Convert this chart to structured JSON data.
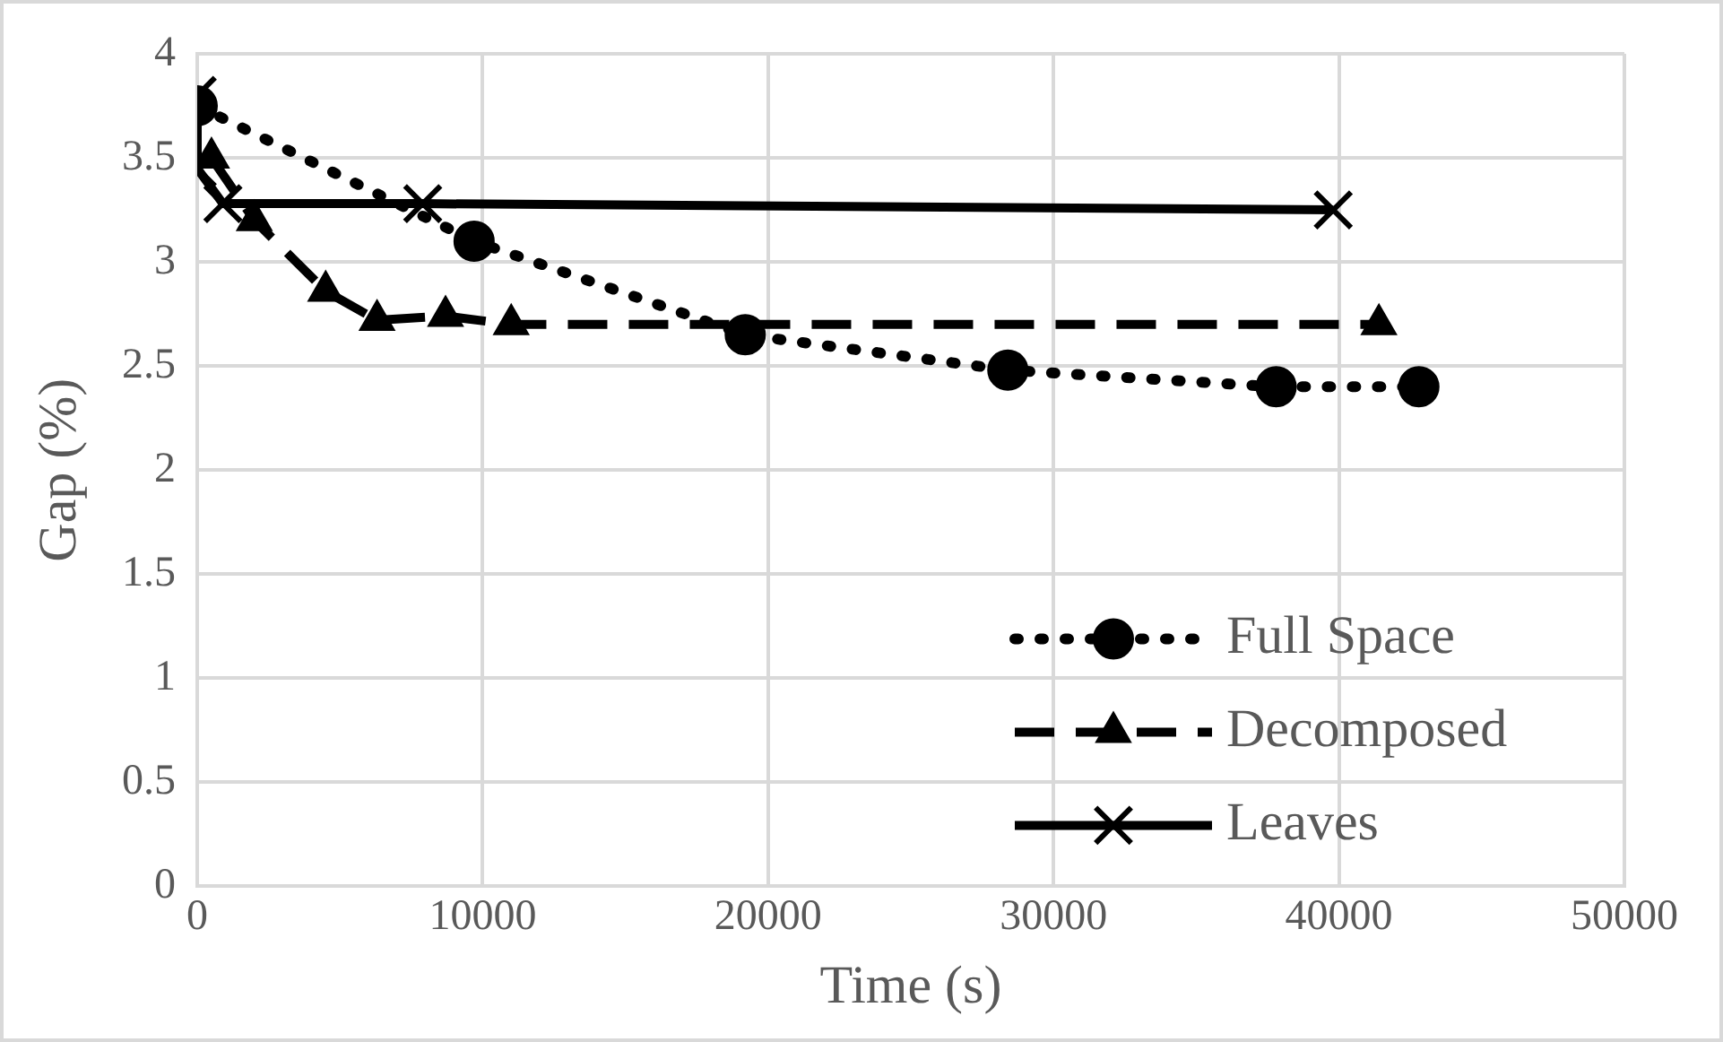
{
  "chart_data": {
    "type": "line",
    "xlabel": "Time (s)",
    "ylabel": "Gap (%)",
    "xlim": [
      0,
      50000
    ],
    "xticks": [
      0,
      10000,
      20000,
      30000,
      40000,
      50000
    ],
    "ylim": [
      0,
      4
    ],
    "yticks": [
      0,
      0.5,
      1,
      1.5,
      2,
      2.5,
      3,
      3.5,
      4
    ],
    "grid": true,
    "legend": "bottom right",
    "series": [
      {
        "name": "Full Space",
        "color": "#000000",
        "marker": "circle",
        "line_style": "dotted",
        "x": [
          0,
          9700,
          19200,
          28400,
          37800,
          42800
        ],
        "values": [
          3.75,
          3.1,
          2.65,
          2.48,
          2.4,
          2.4
        ]
      },
      {
        "name": "Decomposed",
        "color": "#000000",
        "marker": "triangle",
        "line_style": "dashed",
        "x": [
          500,
          2000,
          4500,
          6300,
          8700,
          11000,
          41400
        ],
        "values": [
          3.5,
          3.2,
          2.86,
          2.72,
          2.74,
          2.7,
          2.7
        ]
      },
      {
        "name": "Leaves",
        "color": "#000000",
        "marker": "cross",
        "line_style": "solid",
        "x": [
          0,
          0,
          900,
          7900,
          39800
        ],
        "values": [
          3.8,
          3.45,
          3.28,
          3.28,
          3.25
        ]
      }
    ]
  }
}
